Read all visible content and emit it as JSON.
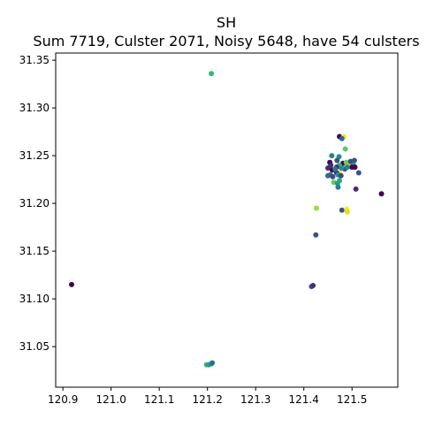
{
  "chart_data": {
    "type": "scatter",
    "title": "SH",
    "subtitle": "Sum 7719, Culster 2071, Noisy 5648, have 54 culsters",
    "xlabel": "",
    "ylabel": "",
    "xlim": [
      120.885,
      121.595
    ],
    "ylim": [
      31.0075,
      31.3575
    ],
    "grid": false,
    "xticks": [
      {
        "value": 120.9,
        "label": "120.9"
      },
      {
        "value": 121.0,
        "label": "121.0"
      },
      {
        "value": 121.1,
        "label": "121.1"
      },
      {
        "value": 121.2,
        "label": "121.2"
      },
      {
        "value": 121.3,
        "label": "121.3"
      },
      {
        "value": 121.4,
        "label": "121.4"
      },
      {
        "value": 121.5,
        "label": "121.5"
      }
    ],
    "yticks": [
      {
        "value": 31.05,
        "label": "31.05"
      },
      {
        "value": 31.1,
        "label": "31.10"
      },
      {
        "value": 31.15,
        "label": "31.15"
      },
      {
        "value": 31.2,
        "label": "31.20"
      },
      {
        "value": 31.25,
        "label": "31.25"
      },
      {
        "value": 31.3,
        "label": "31.30"
      },
      {
        "value": 31.35,
        "label": "31.35"
      }
    ],
    "points": [
      {
        "x": 121.208,
        "y": 31.336,
        "color": "#35b779"
      },
      {
        "x": 120.918,
        "y": 31.115,
        "color": "#440154"
      },
      {
        "x": 121.198,
        "y": 31.031,
        "color": "#35b779"
      },
      {
        "x": 121.203,
        "y": 31.031,
        "color": "#2a9d8f"
      },
      {
        "x": 121.208,
        "y": 31.032,
        "color": "#21918c"
      },
      {
        "x": 121.21,
        "y": 31.033,
        "color": "#2c728e"
      },
      {
        "x": 121.416,
        "y": 31.113,
        "color": "#3b528b"
      },
      {
        "x": 121.419,
        "y": 31.114,
        "color": "#472d7b"
      },
      {
        "x": 121.425,
        "y": 31.167,
        "color": "#3b528b"
      },
      {
        "x": 121.426,
        "y": 31.195,
        "color": "#a0da39"
      },
      {
        "x": 121.479,
        "y": 31.193,
        "color": "#3b528b"
      },
      {
        "x": 121.489,
        "y": 31.194,
        "color": "#fde725"
      },
      {
        "x": 121.49,
        "y": 31.191,
        "color": "#dde318"
      },
      {
        "x": 121.561,
        "y": 31.21,
        "color": "#440154"
      },
      {
        "x": 121.508,
        "y": 31.215,
        "color": "#472d7b"
      },
      {
        "x": 121.474,
        "y": 31.27,
        "color": "#440154"
      },
      {
        "x": 121.483,
        "y": 31.27,
        "color": "#fde725"
      },
      {
        "x": 121.479,
        "y": 31.268,
        "color": "#31688e"
      },
      {
        "x": 121.486,
        "y": 31.257,
        "color": "#5ec962"
      },
      {
        "x": 121.458,
        "y": 31.25,
        "color": "#26828e"
      },
      {
        "x": 121.473,
        "y": 31.249,
        "color": "#21918c"
      },
      {
        "x": 121.469,
        "y": 31.245,
        "color": "#3b528b"
      },
      {
        "x": 121.505,
        "y": 31.245,
        "color": "#3b528b"
      },
      {
        "x": 121.454,
        "y": 31.243,
        "color": "#440154"
      },
      {
        "x": 121.456,
        "y": 31.24,
        "color": "#482878"
      },
      {
        "x": 121.481,
        "y": 31.242,
        "color": "#440154"
      },
      {
        "x": 121.488,
        "y": 31.243,
        "color": "#6ece58"
      },
      {
        "x": 121.474,
        "y": 31.24,
        "color": "#35b779"
      },
      {
        "x": 121.468,
        "y": 31.238,
        "color": "#482878"
      },
      {
        "x": 121.45,
        "y": 31.237,
        "color": "#472d7b"
      },
      {
        "x": 121.459,
        "y": 31.235,
        "color": "#440154"
      },
      {
        "x": 121.495,
        "y": 31.24,
        "color": "#b5de2b"
      },
      {
        "x": 121.497,
        "y": 31.244,
        "color": "#3e4a89"
      },
      {
        "x": 121.503,
        "y": 31.24,
        "color": "#1f9e89"
      },
      {
        "x": 121.5,
        "y": 31.238,
        "color": "#440154"
      },
      {
        "x": 121.506,
        "y": 31.238,
        "color": "#440154"
      },
      {
        "x": 121.485,
        "y": 31.236,
        "color": "#3b528b"
      },
      {
        "x": 121.49,
        "y": 31.238,
        "color": "#26828e"
      },
      {
        "x": 121.474,
        "y": 31.232,
        "color": "#fde725"
      },
      {
        "x": 121.468,
        "y": 31.232,
        "color": "#482878"
      },
      {
        "x": 121.471,
        "y": 31.23,
        "color": "#21918c"
      },
      {
        "x": 121.477,
        "y": 31.229,
        "color": "#414487"
      },
      {
        "x": 121.455,
        "y": 31.23,
        "color": "#2a788e"
      },
      {
        "x": 121.45,
        "y": 31.229,
        "color": "#31688e"
      },
      {
        "x": 121.46,
        "y": 31.228,
        "color": "#3e4a89"
      },
      {
        "x": 121.514,
        "y": 31.232,
        "color": "#3b528b"
      },
      {
        "x": 121.462,
        "y": 31.222,
        "color": "#5ec962"
      },
      {
        "x": 121.47,
        "y": 31.221,
        "color": "#1f9e89"
      },
      {
        "x": 121.474,
        "y": 31.224,
        "color": "#22a884"
      },
      {
        "x": 121.471,
        "y": 31.217,
        "color": "#26828e"
      },
      {
        "x": 121.478,
        "y": 31.237,
        "color": "#21918c"
      },
      {
        "x": 121.465,
        "y": 31.236,
        "color": "#2a788e"
      }
    ]
  }
}
